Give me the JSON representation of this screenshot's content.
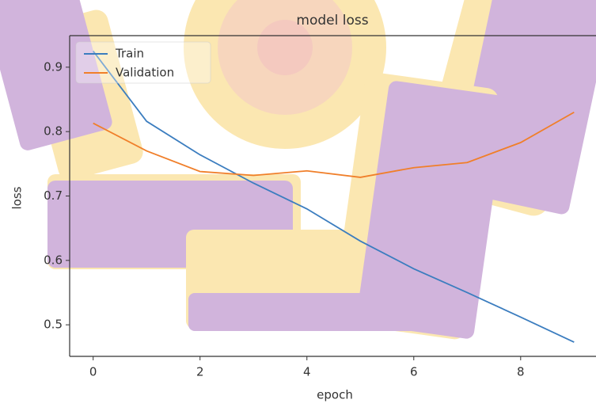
{
  "chart_data": {
    "type": "line",
    "title": "model loss",
    "x_label": "epoch",
    "y_label": "loss",
    "x": [
      0,
      1,
      2,
      3,
      4,
      5,
      6,
      7,
      8,
      9
    ],
    "series": [
      {
        "name": "Train",
        "color": "#3b7dbf",
        "values": [
          0.925,
          0.816,
          0.764,
          0.72,
          0.68,
          0.63,
          0.587,
          0.55,
          0.512,
          0.473
        ]
      },
      {
        "name": "Validation",
        "color": "#f07f2a",
        "values": [
          0.813,
          0.77,
          0.738,
          0.732,
          0.739,
          0.729,
          0.744,
          0.752,
          0.783,
          0.83
        ]
      }
    ],
    "xlim": [
      -0.44,
      9.41
    ],
    "ylim": [
      0.451,
      0.949
    ],
    "xticks": [
      0,
      2,
      4,
      6,
      8
    ],
    "yticks": [
      0.5,
      0.6,
      0.7,
      0.8,
      0.9
    ],
    "legend": "upper left"
  }
}
